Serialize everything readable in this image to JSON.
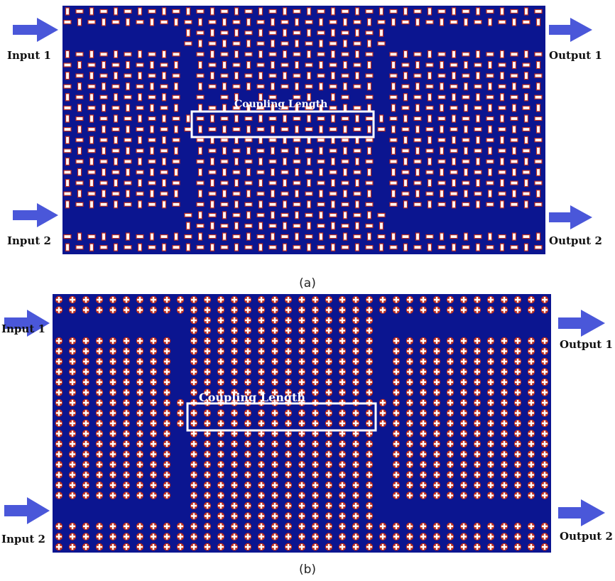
{
  "colors": {
    "substrate": "#0b1590",
    "arrow": "#4a57d9",
    "pillar_fill": "#ffffff",
    "pillar_rim": "#c0301e",
    "coupling_box": "#ffffff",
    "text": "#111111"
  },
  "panels": [
    {
      "id": "a",
      "caption": "(a)",
      "pillar_shape": "rectangular-rod",
      "inputs": [
        "Input 1",
        "Input 2"
      ],
      "outputs": [
        "Output 1",
        "Output 2"
      ],
      "coupling_label": "Coupling Length",
      "lattice": {
        "columns": 40,
        "rows": 23
      }
    },
    {
      "id": "b",
      "caption": "(b)",
      "pillar_shape": "cross",
      "inputs": [
        "Input 1",
        "Input 2"
      ],
      "outputs": [
        "Output 1",
        "Output 2"
      ],
      "coupling_label": "Coupling Length",
      "lattice": {
        "columns": 37,
        "rows": 25
      }
    }
  ]
}
